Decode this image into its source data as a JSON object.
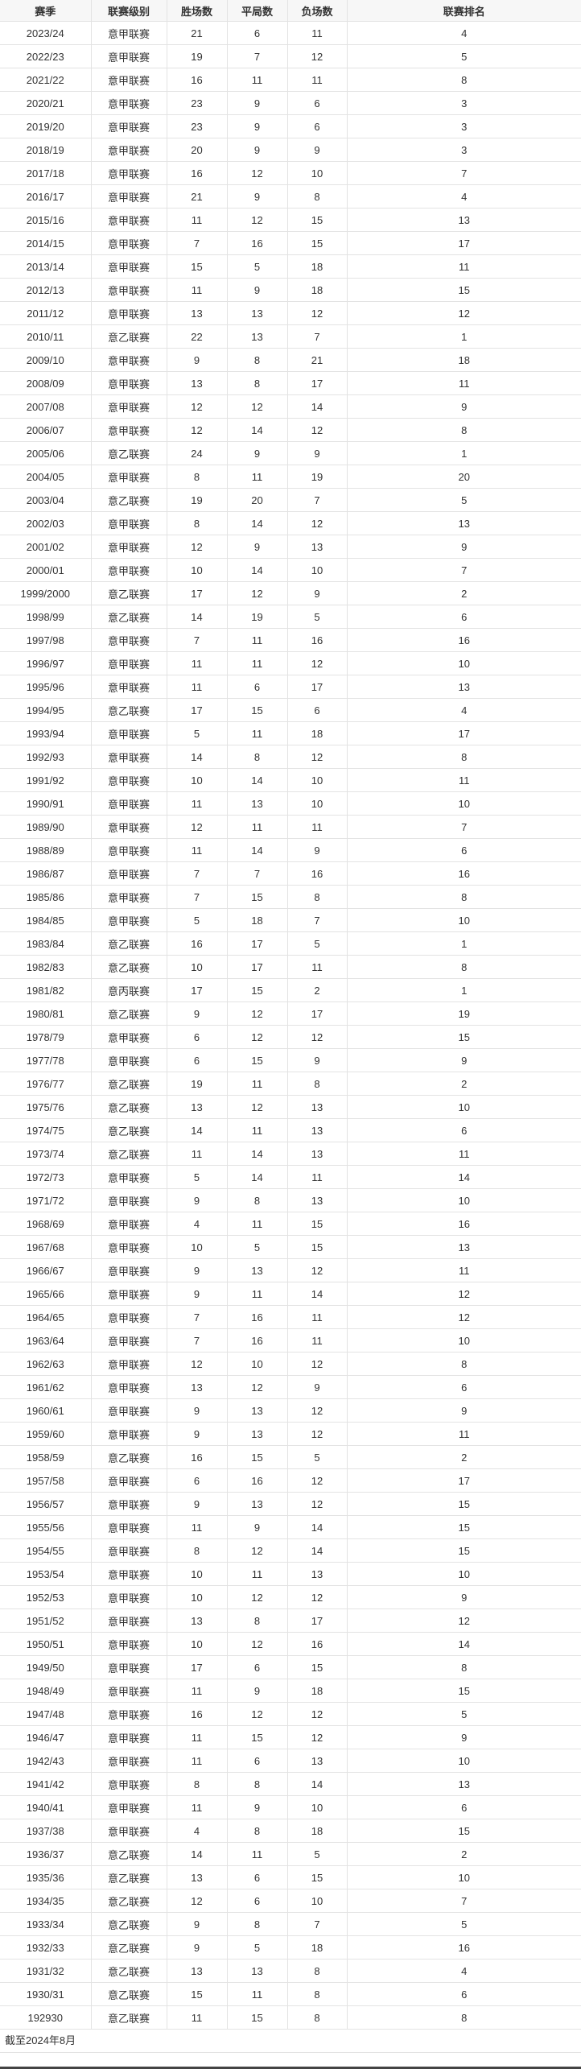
{
  "table": {
    "headers": [
      "赛季",
      "联赛级别",
      "胜场数",
      "平局数",
      "负场数",
      "联赛排名"
    ],
    "rows": [
      [
        "2023/24",
        "意甲联赛",
        "21",
        "6",
        "11",
        "4"
      ],
      [
        "2022/23",
        "意甲联赛",
        "19",
        "7",
        "12",
        "5"
      ],
      [
        "2021/22",
        "意甲联赛",
        "16",
        "11",
        "11",
        "8"
      ],
      [
        "2020/21",
        "意甲联赛",
        "23",
        "9",
        "6",
        "3"
      ],
      [
        "2019/20",
        "意甲联赛",
        "23",
        "9",
        "6",
        "3"
      ],
      [
        "2018/19",
        "意甲联赛",
        "20",
        "9",
        "9",
        "3"
      ],
      [
        "2017/18",
        "意甲联赛",
        "16",
        "12",
        "10",
        "7"
      ],
      [
        "2016/17",
        "意甲联赛",
        "21",
        "9",
        "8",
        "4"
      ],
      [
        "2015/16",
        "意甲联赛",
        "11",
        "12",
        "15",
        "13"
      ],
      [
        "2014/15",
        "意甲联赛",
        "7",
        "16",
        "15",
        "17"
      ],
      [
        "2013/14",
        "意甲联赛",
        "15",
        "5",
        "18",
        "11"
      ],
      [
        "2012/13",
        "意甲联赛",
        "11",
        "9",
        "18",
        "15"
      ],
      [
        "2011/12",
        "意甲联赛",
        "13",
        "13",
        "12",
        "12"
      ],
      [
        "2010/11",
        "意乙联赛",
        "22",
        "13",
        "7",
        "1"
      ],
      [
        "2009/10",
        "意甲联赛",
        "9",
        "8",
        "21",
        "18"
      ],
      [
        "2008/09",
        "意甲联赛",
        "13",
        "8",
        "17",
        "11"
      ],
      [
        "2007/08",
        "意甲联赛",
        "12",
        "12",
        "14",
        "9"
      ],
      [
        "2006/07",
        "意甲联赛",
        "12",
        "14",
        "12",
        "8"
      ],
      [
        "2005/06",
        "意乙联赛",
        "24",
        "9",
        "9",
        "1"
      ],
      [
        "2004/05",
        "意甲联赛",
        "8",
        "11",
        "19",
        "20"
      ],
      [
        "2003/04",
        "意乙联赛",
        "19",
        "20",
        "7",
        "5"
      ],
      [
        "2002/03",
        "意甲联赛",
        "8",
        "14",
        "12",
        "13"
      ],
      [
        "2001/02",
        "意甲联赛",
        "12",
        "9",
        "13",
        "9"
      ],
      [
        "2000/01",
        "意甲联赛",
        "10",
        "14",
        "10",
        "7"
      ],
      [
        "1999/2000",
        "意乙联赛",
        "17",
        "12",
        "9",
        "2"
      ],
      [
        "1998/99",
        "意乙联赛",
        "14",
        "19",
        "5",
        "6"
      ],
      [
        "1997/98",
        "意甲联赛",
        "7",
        "11",
        "16",
        "16"
      ],
      [
        "1996/97",
        "意甲联赛",
        "11",
        "11",
        "12",
        "10"
      ],
      [
        "1995/96",
        "意甲联赛",
        "11",
        "6",
        "17",
        "13"
      ],
      [
        "1994/95",
        "意乙联赛",
        "17",
        "15",
        "6",
        "4"
      ],
      [
        "1993/94",
        "意甲联赛",
        "5",
        "11",
        "18",
        "17"
      ],
      [
        "1992/93",
        "意甲联赛",
        "14",
        "8",
        "12",
        "8"
      ],
      [
        "1991/92",
        "意甲联赛",
        "10",
        "14",
        "10",
        "11"
      ],
      [
        "1990/91",
        "意甲联赛",
        "11",
        "13",
        "10",
        "10"
      ],
      [
        "1989/90",
        "意甲联赛",
        "12",
        "11",
        "11",
        "7"
      ],
      [
        "1988/89",
        "意甲联赛",
        "11",
        "14",
        "9",
        "6"
      ],
      [
        "1986/87",
        "意甲联赛",
        "7",
        "7",
        "16",
        "16"
      ],
      [
        "1985/86",
        "意甲联赛",
        "7",
        "15",
        "8",
        "8"
      ],
      [
        "1984/85",
        "意甲联赛",
        "5",
        "18",
        "7",
        "10"
      ],
      [
        "1983/84",
        "意乙联赛",
        "16",
        "17",
        "5",
        "1"
      ],
      [
        "1982/83",
        "意乙联赛",
        "10",
        "17",
        "11",
        "8"
      ],
      [
        "1981/82",
        "意丙联赛",
        "17",
        "15",
        "2",
        "1"
      ],
      [
        "1980/81",
        "意乙联赛",
        "9",
        "12",
        "17",
        "19"
      ],
      [
        "1978/79",
        "意甲联赛",
        "6",
        "12",
        "12",
        "15"
      ],
      [
        "1977/78",
        "意甲联赛",
        "6",
        "15",
        "9",
        "9"
      ],
      [
        "1976/77",
        "意乙联赛",
        "19",
        "11",
        "8",
        "2"
      ],
      [
        "1975/76",
        "意乙联赛",
        "13",
        "12",
        "13",
        "10"
      ],
      [
        "1974/75",
        "意乙联赛",
        "14",
        "11",
        "13",
        "6"
      ],
      [
        "1973/74",
        "意乙联赛",
        "11",
        "14",
        "13",
        "11"
      ],
      [
        "1972/73",
        "意甲联赛",
        "5",
        "14",
        "11",
        "14"
      ],
      [
        "1971/72",
        "意甲联赛",
        "9",
        "8",
        "13",
        "10"
      ],
      [
        "1968/69",
        "意甲联赛",
        "4",
        "11",
        "15",
        "16"
      ],
      [
        "1967/68",
        "意甲联赛",
        "10",
        "5",
        "15",
        "13"
      ],
      [
        "1966/67",
        "意甲联赛",
        "9",
        "13",
        "12",
        "11"
      ],
      [
        "1965/66",
        "意甲联赛",
        "9",
        "11",
        "14",
        "12"
      ],
      [
        "1964/65",
        "意甲联赛",
        "7",
        "16",
        "11",
        "12"
      ],
      [
        "1963/64",
        "意甲联赛",
        "7",
        "16",
        "11",
        "10"
      ],
      [
        "1962/63",
        "意甲联赛",
        "12",
        "10",
        "12",
        "8"
      ],
      [
        "1961/62",
        "意甲联赛",
        "13",
        "12",
        "9",
        "6"
      ],
      [
        "1960/61",
        "意甲联赛",
        "9",
        "13",
        "12",
        "9"
      ],
      [
        "1959/60",
        "意甲联赛",
        "9",
        "13",
        "12",
        "11"
      ],
      [
        "1958/59",
        "意乙联赛",
        "16",
        "15",
        "5",
        "2"
      ],
      [
        "1957/58",
        "意甲联赛",
        "6",
        "16",
        "12",
        "17"
      ],
      [
        "1956/57",
        "意甲联赛",
        "9",
        "13",
        "12",
        "15"
      ],
      [
        "1955/56",
        "意甲联赛",
        "11",
        "9",
        "14",
        "15"
      ],
      [
        "1954/55",
        "意甲联赛",
        "8",
        "12",
        "14",
        "15"
      ],
      [
        "1953/54",
        "意甲联赛",
        "10",
        "11",
        "13",
        "10"
      ],
      [
        "1952/53",
        "意甲联赛",
        "10",
        "12",
        "12",
        "9"
      ],
      [
        "1951/52",
        "意甲联赛",
        "13",
        "8",
        "17",
        "12"
      ],
      [
        "1950/51",
        "意甲联赛",
        "10",
        "12",
        "16",
        "14"
      ],
      [
        "1949/50",
        "意甲联赛",
        "17",
        "6",
        "15",
        "8"
      ],
      [
        "1948/49",
        "意甲联赛",
        "11",
        "9",
        "18",
        "15"
      ],
      [
        "1947/48",
        "意甲联赛",
        "16",
        "12",
        "12",
        "5"
      ],
      [
        "1946/47",
        "意甲联赛",
        "11",
        "15",
        "12",
        "9"
      ],
      [
        "1942/43",
        "意甲联赛",
        "11",
        "6",
        "13",
        "10"
      ],
      [
        "1941/42",
        "意甲联赛",
        "8",
        "8",
        "14",
        "13"
      ],
      [
        "1940/41",
        "意甲联赛",
        "11",
        "9",
        "10",
        "6"
      ],
      [
        "1937/38",
        "意甲联赛",
        "4",
        "8",
        "18",
        "15"
      ],
      [
        "1936/37",
        "意乙联赛",
        "14",
        "11",
        "5",
        "2"
      ],
      [
        "1935/36",
        "意乙联赛",
        "13",
        "6",
        "15",
        "10"
      ],
      [
        "1934/35",
        "意乙联赛",
        "12",
        "6",
        "10",
        "7"
      ],
      [
        "1933/34",
        "意乙联赛",
        "9",
        "8",
        "7",
        "5"
      ],
      [
        "1932/33",
        "意乙联赛",
        "9",
        "5",
        "18",
        "16"
      ],
      [
        "1931/32",
        "意乙联赛",
        "13",
        "13",
        "8",
        "4"
      ],
      [
        "1930/31",
        "意乙联赛",
        "15",
        "11",
        "8",
        "6"
      ],
      [
        "192930",
        "意乙联赛",
        "11",
        "15",
        "8",
        "8"
      ]
    ]
  },
  "footnote": "截至2024年8月"
}
